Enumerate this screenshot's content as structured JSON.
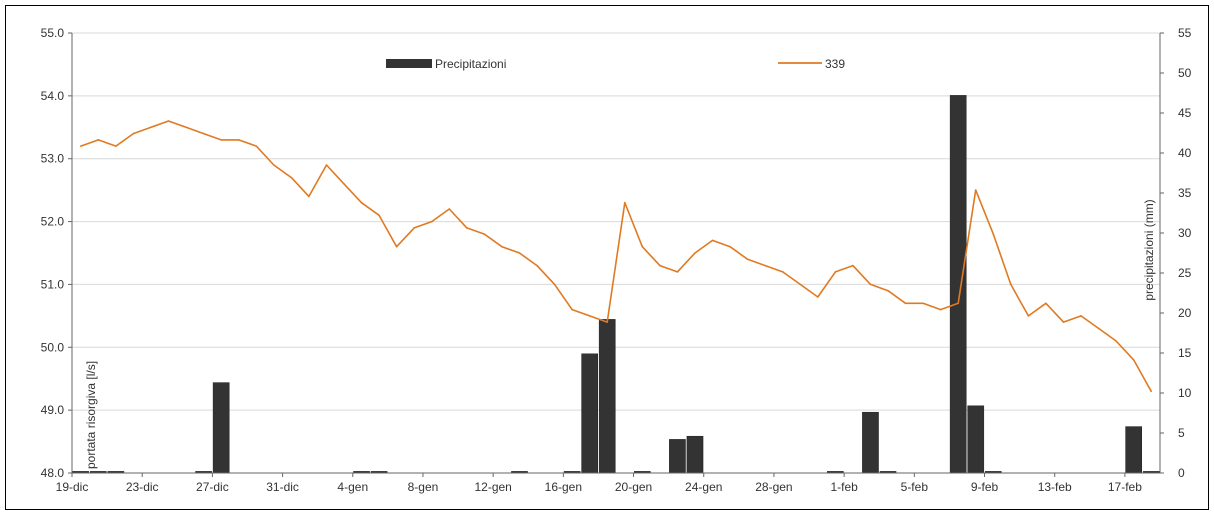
{
  "chart_data": {
    "type": "bar+line",
    "ylabel_left": "portata risorgiva [l/s]",
    "ylabel_right": "precipitazioni (mm)",
    "ylim_left": [
      48.0,
      55.0
    ],
    "ylim_right": [
      0,
      55
    ],
    "yticks_left": [
      "48.0",
      "49.0",
      "50.0",
      "51.0",
      "52.0",
      "53.0",
      "54.0",
      "55.0"
    ],
    "yticks_right": [
      "0",
      "5",
      "10",
      "15",
      "20",
      "25",
      "30",
      "35",
      "40",
      "45",
      "50",
      "55"
    ],
    "x_tick_labels": [
      "19-dic",
      "23-dic",
      "27-dic",
      "31-dic",
      "4-gen",
      "8-gen",
      "12-gen",
      "16-gen",
      "20-gen",
      "24-gen",
      "28-gen",
      "1-feb",
      "5-feb",
      "9-feb",
      "13-feb",
      "17-feb"
    ],
    "grid": "horizontal",
    "legend": [
      {
        "name": "Precipitazioni",
        "color": "#333333",
        "style": "bar"
      },
      {
        "name": "339",
        "color": "#e07a22",
        "style": "line"
      }
    ],
    "precip_days": [
      "19-dic",
      "20-dic",
      "21-dic",
      "22-dic",
      "23-dic",
      "24-dic",
      "25-dic",
      "26-dic",
      "27-dic",
      "28-dic",
      "29-dic",
      "30-dic",
      "31-dic",
      "1-gen",
      "2-gen",
      "3-gen",
      "4-gen",
      "5-gen",
      "6-gen",
      "7-gen",
      "8-gen",
      "9-gen",
      "10-gen",
      "11-gen",
      "12-gen",
      "13-gen",
      "14-gen",
      "15-gen",
      "16-gen",
      "17-gen",
      "18-gen",
      "19-gen",
      "20-gen",
      "21-gen",
      "22-gen",
      "23-gen",
      "24-gen",
      "25-gen",
      "26-gen",
      "27-gen",
      "28-gen",
      "29-gen",
      "30-gen",
      "31-gen",
      "1-feb",
      "2-feb",
      "3-feb",
      "4-feb",
      "5-feb",
      "6-feb",
      "7-feb",
      "8-feb",
      "9-feb",
      "10-feb",
      "11-feb",
      "12-feb",
      "13-feb",
      "14-feb",
      "15-feb",
      "16-feb",
      "17-feb",
      "18-feb"
    ],
    "precip_values": [
      0.2,
      0.2,
      0.2,
      0,
      0,
      0,
      0,
      0.2,
      11.3,
      0,
      0,
      0,
      0,
      0,
      0,
      0,
      0.2,
      0.2,
      0,
      0,
      0,
      0,
      0,
      0,
      0,
      0.2,
      0,
      0,
      0.2,
      14.9,
      19.2,
      0,
      0.2,
      0,
      4.2,
      4.6,
      0,
      0,
      0,
      0,
      0,
      0,
      0,
      0.2,
      0,
      7.6,
      0.2,
      0,
      0,
      0,
      47.2,
      8.4,
      0.2,
      0,
      0,
      0,
      0,
      0,
      0,
      0,
      5.8,
      0.2,
      0,
      0
    ],
    "line_series": {
      "name": "339",
      "x": [
        "19-dic",
        "20-dic",
        "21-dic",
        "22-dic",
        "23-dic",
        "24-dic",
        "25-dic",
        "26-dic",
        "27-dic",
        "28-dic",
        "29-dic",
        "30-dic",
        "31-dic",
        "1-gen",
        "2-gen",
        "3-gen",
        "4-gen",
        "5-gen",
        "6-gen",
        "7-gen",
        "8-gen",
        "9-gen",
        "10-gen",
        "11-gen",
        "12-gen",
        "13-gen",
        "14-gen",
        "15-gen",
        "16-gen",
        "17-gen",
        "18-gen",
        "19-gen",
        "20-gen",
        "21-gen",
        "22-gen",
        "23-gen",
        "24-gen",
        "25-gen",
        "26-gen",
        "27-gen",
        "28-gen",
        "29-gen",
        "30-gen",
        "31-gen",
        "1-feb",
        "2-feb",
        "3-feb",
        "4-feb",
        "5-feb",
        "6-feb",
        "7-feb",
        "8-feb",
        "9-feb",
        "10-feb",
        "11-feb",
        "12-feb",
        "13-feb",
        "14-feb",
        "15-feb",
        "16-feb",
        "17-feb",
        "18-feb"
      ],
      "y": [
        53.2,
        53.3,
        53.2,
        53.4,
        53.5,
        53.6,
        53.5,
        53.4,
        53.3,
        53.3,
        53.2,
        52.9,
        52.7,
        52.4,
        52.9,
        52.6,
        52.3,
        52.1,
        51.6,
        51.9,
        52.0,
        52.2,
        51.9,
        51.8,
        51.6,
        51.5,
        51.3,
        51.0,
        50.6,
        50.5,
        50.4,
        52.3,
        51.6,
        51.3,
        51.2,
        51.5,
        51.7,
        51.6,
        51.4,
        51.3,
        51.2,
        51.0,
        50.8,
        51.2,
        51.3,
        51.0,
        50.9,
        50.7,
        50.7,
        50.6,
        50.7,
        52.5,
        51.8,
        51.0,
        50.5,
        50.7,
        50.4,
        50.5,
        50.3,
        50.1,
        49.8,
        49.3
      ],
      "color": "#e07a22"
    }
  }
}
